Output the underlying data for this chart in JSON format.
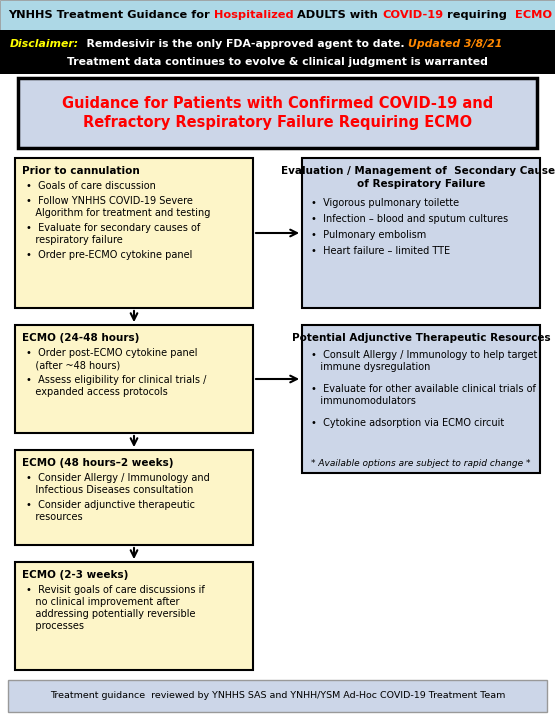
{
  "title_bg": "#add8e6",
  "disclaimer_bg": "#000000",
  "main_box_bg": "#ccd6e8",
  "main_box_title_line1": "Guidance for Patients with Confirmed COVID-19 and",
  "main_box_title_line2": "Refractory Respiratory Failure Requiring ECMO",
  "box1_title": "Prior to cannulation",
  "box1_bg": "#fdf5c8",
  "box1_bullets": [
    "Goals of care discussion",
    "Follow YNHHS COVID-19 Severe\n   Algorithm for treatment and testing",
    "Evaluate for secondary causes of\n   respiratory failure",
    "Order pre-ECMO cytokine panel"
  ],
  "box2_title_line1": "Evaluation / Management of  Secondary Causes",
  "box2_title_line2": "of Respiratory Failure",
  "box2_bg": "#ccd6e8",
  "box2_bullets": [
    "Vigorous pulmonary toilette",
    "Infection – blood and sputum cultures",
    "Pulmonary embolism",
    "Heart failure – limited TTE"
  ],
  "box3_title": "ECMO (24-48 hours)",
  "box3_bg": "#fdf5c8",
  "box3_bullets": [
    "Order post-ECMO cytokine panel\n   (after ~48 hours)",
    "Assess eligibility for clinical trials /\n   expanded access protocols"
  ],
  "box4_title": "Potential Adjunctive Therapeutic Resources",
  "box4_bg": "#ccd6e8",
  "box4_bullets": [
    "Consult Allergy / Immunology to help target\n   immune dysregulation",
    "Evaluate for other available clinical trials of\n   immunomodulators",
    "Cytokine adsorption via ECMO circuit"
  ],
  "box4_note": "* Available options are subject to rapid change *",
  "box5_title": "ECMO (48 hours–2 weeks)",
  "box5_bg": "#fdf5c8",
  "box5_bullets": [
    "Consider Allergy / Immunology and\n   Infectious Diseases consultation",
    "Consider adjunctive therapeutic\n   resources"
  ],
  "box6_title": "ECMO (2-3 weeks)",
  "box6_bg": "#fdf5c8",
  "box6_bullets": [
    "Revisit goals of care discussions if\n   no clinical improvement after\n   addressing potentially reversible\n   processes"
  ],
  "footer_bg": "#ccd6e8",
  "footer_text": "Treatment guidance  reviewed by YNHHS SAS and YNHH/YSM Ad-Hoc COVID-19 Treatment Team",
  "bg_color": "#ffffff"
}
